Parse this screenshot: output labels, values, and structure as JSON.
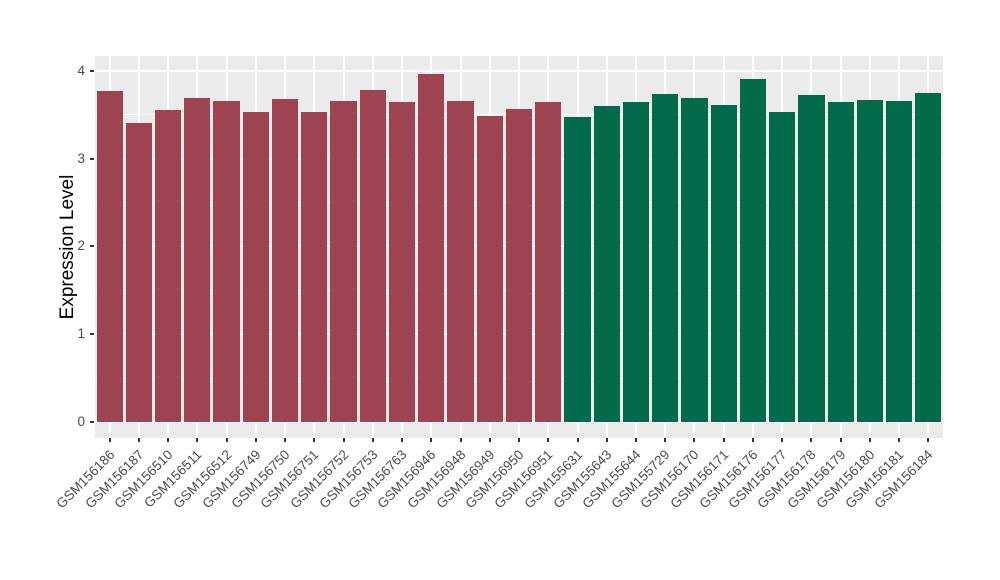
{
  "chart_data": {
    "type": "bar",
    "title": "",
    "xlabel": "",
    "ylabel": "Expression Level",
    "ylim": [
      0,
      4
    ],
    "yticks": [
      0,
      1,
      2,
      3,
      4
    ],
    "ytick_labels": [
      "0",
      "1",
      "2",
      "3",
      "4"
    ],
    "minor_gridlines": [
      0.5,
      1.5,
      2.5,
      3.5
    ],
    "grid": "on",
    "legend_position": "none",
    "categories": [
      "GSM156186",
      "GSM156187",
      "GSM156510",
      "GSM156511",
      "GSM156512",
      "GSM156749",
      "GSM156750",
      "GSM156751",
      "GSM156752",
      "GSM156753",
      "GSM156763",
      "GSM156946",
      "GSM156948",
      "GSM156949",
      "GSM156950",
      "GSM156951",
      "GSM155631",
      "GSM155643",
      "GSM155644",
      "GSM155729",
      "GSM156170",
      "GSM156171",
      "GSM156176",
      "GSM156177",
      "GSM156178",
      "GSM156179",
      "GSM156180",
      "GSM156181",
      "GSM156184"
    ],
    "values": [
      3.77,
      3.41,
      3.55,
      3.69,
      3.66,
      3.53,
      3.68,
      3.53,
      3.66,
      3.78,
      3.64,
      3.96,
      3.66,
      3.49,
      3.57,
      3.65,
      3.47,
      3.6,
      3.64,
      3.74,
      3.69,
      3.61,
      3.91,
      3.53,
      3.73,
      3.65,
      3.67,
      3.66,
      3.75
    ],
    "bar_colors": [
      "#9E4352",
      "#9E4352",
      "#9E4352",
      "#9E4352",
      "#9E4352",
      "#9E4352",
      "#9E4352",
      "#9E4352",
      "#9E4352",
      "#9E4352",
      "#9E4352",
      "#9E4352",
      "#9E4352",
      "#9E4352",
      "#9E4352",
      "#9E4352",
      "#016A4B",
      "#016A4B",
      "#016A4B",
      "#016A4B",
      "#016A4B",
      "#016A4B",
      "#016A4B",
      "#016A4B",
      "#016A4B",
      "#016A4B",
      "#016A4B",
      "#016A4B",
      "#016A4B"
    ],
    "colors": {
      "group_red": "#9E4352",
      "group_green": "#016A4B",
      "panel_background": "#EBEBEB",
      "gridline": "#FFFFFF",
      "axis_text": "#4D4D4D",
      "axis_title": "#000000",
      "tick_mark": "#333333"
    }
  }
}
